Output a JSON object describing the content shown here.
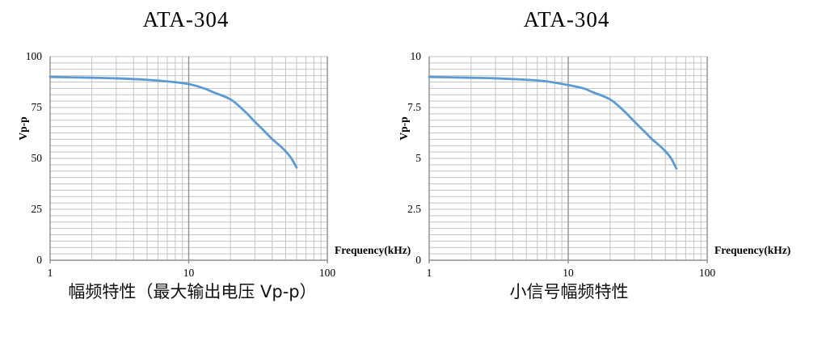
{
  "page": {
    "background": "#ffffff"
  },
  "colors": {
    "line": "#5B9BD5",
    "grid_minor": "#c3c3c3",
    "grid_major": "#8f8f8f",
    "text": "#000000"
  },
  "chart_data": [
    {
      "type": "line",
      "title": "ATA-304",
      "caption": "幅频特性（最大输出电压 Vp-p）",
      "xlabel": "Frequency(kHz)",
      "ylabel": "Vp-p",
      "x_scale": "log",
      "xlim": [
        1,
        100
      ],
      "ylim": [
        0,
        100
      ],
      "x_ticks": [
        1,
        10,
        100
      ],
      "y_ticks": [
        100,
        75,
        50,
        25,
        0
      ],
      "y_minor_unit": 3.125,
      "grid": true,
      "legend": false,
      "series": [
        {
          "name": "Vp-p",
          "color": "#5B9BD5",
          "x": [
            1,
            2,
            3,
            5,
            7,
            10,
            13,
            15,
            20,
            25,
            30,
            35,
            40,
            45,
            50,
            55,
            60
          ],
          "y": [
            90,
            89.6,
            89.3,
            88.6,
            87.8,
            86.5,
            84.3,
            82.5,
            79,
            73.5,
            68,
            63.5,
            59.5,
            56.5,
            53.5,
            50,
            45.5
          ]
        }
      ]
    },
    {
      "type": "line",
      "title": "ATA-304",
      "caption": "小信号幅频特性",
      "xlabel": "Frequency(kHz)",
      "ylabel": "Vp-p",
      "x_scale": "log",
      "xlim": [
        1,
        100
      ],
      "ylim": [
        0,
        10
      ],
      "x_ticks": [
        1,
        10,
        100
      ],
      "y_ticks": [
        10,
        7.5,
        5,
        2.5,
        0
      ],
      "y_minor_unit": 0.3125,
      "grid": true,
      "legend": false,
      "series": [
        {
          "name": "Vp-p",
          "color": "#5B9BD5",
          "x": [
            1,
            2,
            3,
            5,
            7,
            10,
            13,
            15,
            20,
            25,
            30,
            35,
            40,
            45,
            50,
            55,
            60
          ],
          "y": [
            9,
            8.96,
            8.93,
            8.86,
            8.78,
            8.6,
            8.43,
            8.25,
            7.9,
            7.35,
            6.8,
            6.35,
            5.95,
            5.65,
            5.35,
            5,
            4.5
          ]
        }
      ]
    }
  ]
}
